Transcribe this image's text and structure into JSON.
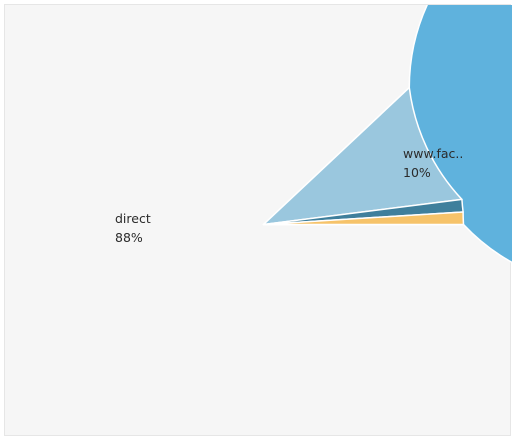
{
  "chart_data": {
    "type": "pie",
    "title": "",
    "start_angle_deg": 0,
    "direction": "counterclockwise",
    "slices": [
      {
        "name": "direct",
        "label": "direct",
        "value": 88,
        "percent_label": "88%",
        "color": "#5fb2dd",
        "show_label": true
      },
      {
        "name": "www.facebook",
        "label": "www.fac..",
        "value": 10,
        "percent_label": "10%",
        "color": "#9ac7de",
        "show_label": true
      },
      {
        "name": "other-1",
        "label": "",
        "value": 1,
        "percent_label": "",
        "color": "#3f7f9c",
        "show_label": false
      },
      {
        "name": "other-2",
        "label": "",
        "value": 1,
        "percent_label": "",
        "color": "#f6c36a",
        "show_label": false
      }
    ],
    "legend": "none",
    "grid": false
  }
}
